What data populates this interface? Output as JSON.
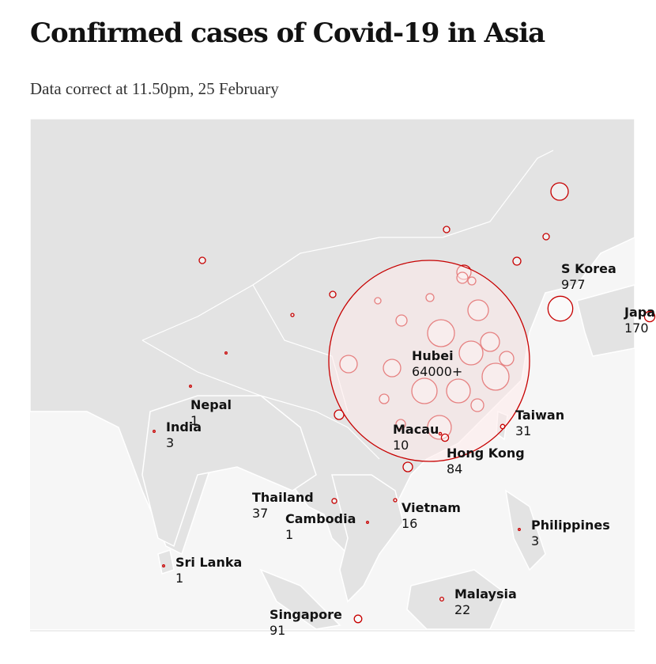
{
  "title": "Confirmed cases of Covid-19 in Asia",
  "subtitle": "Data correct at 11.50pm, 25 February",
  "map": {
    "type": "bubble-map",
    "color": "#c70000",
    "labelled": [
      {
        "name": "Hubei",
        "cases": 64000,
        "value_label": "64000+"
      },
      {
        "name": "S Korea",
        "cases": 977
      },
      {
        "name": "Japan",
        "cases": 170
      },
      {
        "name": "Taiwan",
        "cases": 31
      },
      {
        "name": "Macau",
        "cases": 10
      },
      {
        "name": "Hong Kong",
        "cases": 84
      },
      {
        "name": "Nepal",
        "cases": 1
      },
      {
        "name": "India",
        "cases": 3
      },
      {
        "name": "Thailand",
        "cases": 37
      },
      {
        "name": "Cambodia",
        "cases": 1
      },
      {
        "name": "Vietnam",
        "cases": 16
      },
      {
        "name": "Philippines",
        "cases": 3
      },
      {
        "name": "Sri Lanka",
        "cases": 1
      },
      {
        "name": "Malaysia",
        "cases": 22
      },
      {
        "name": "Singapore",
        "cases": 91
      }
    ],
    "unlabelled_cases": [
      480,
      64,
      64,
      99,
      64,
      321,
      194,
      99,
      64,
      99,
      64,
      16,
      671,
      194,
      1147,
      571,
      893,
      321,
      480,
      480,
      1147,
      1016,
      893,
      143,
      256,
      143,
      143,
      893,
      143,
      4
    ]
  }
}
